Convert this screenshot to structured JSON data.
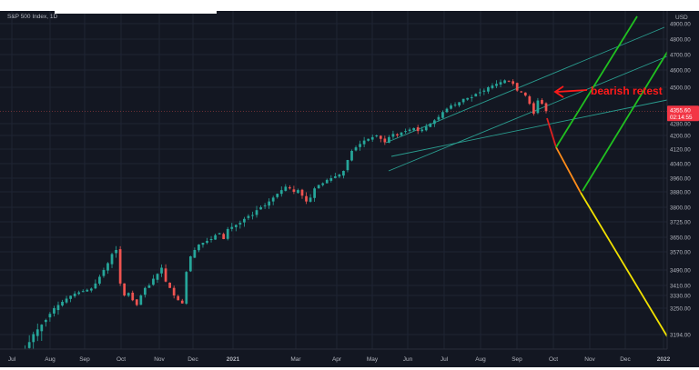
{
  "legend": {
    "symbol": "S&P 500 Index, 1D"
  },
  "annotations": [
    {
      "text": "bearish retest",
      "color": "#ff1a1a"
    }
  ],
  "price_tag": {
    "price": "4355.60",
    "countdown": "02:14:55",
    "color": "#f23645"
  },
  "colors": {
    "background": "#131722",
    "grid": "#1f2433",
    "axis_text": "#b2b5be",
    "candle_up": "#26a69a",
    "candle_down": "#ef5350",
    "channel": "#2a9d8f",
    "green_line": "#20c020",
    "red_line": "#e02020",
    "orange_line": "#ff8c1a",
    "yellow_line": "#f0e000"
  },
  "chart_data": {
    "type": "candlestick",
    "title": "",
    "xlabel": "",
    "ylabel": "",
    "y_axis_labels": [
      "4900.00",
      "4800.00",
      "4700.00",
      "4600.00",
      "4500.00",
      "4280.00",
      "4200.00",
      "4120.00",
      "4040.00",
      "3960.00",
      "3880.00",
      "3800.00",
      "3725.00",
      "3650.00",
      "3570.00",
      "3490.00",
      "3410.00",
      "3330.00",
      "3250.00",
      "3194.00"
    ],
    "y_axis_top_label": "USD",
    "x_axis_labels": [
      "Jul",
      "Aug",
      "Sep",
      "Oct",
      "Nov",
      "Dec",
      "2021",
      "Mar",
      "Apr",
      "May",
      "Jun",
      "Jul",
      "Aug",
      "Sep",
      "Oct",
      "Nov",
      "Dec",
      "2022"
    ],
    "x_axis_bold": [
      "2021",
      "2022"
    ],
    "current_price": 4355.6,
    "grid": true,
    "series": [
      {
        "values": [
          3120,
          3135,
          3150,
          3162,
          3178,
          3195,
          3205,
          3215,
          3225,
          3238,
          3250,
          3270,
          3290,
          3310,
          3328,
          3345,
          3355,
          3365,
          3375,
          3385,
          3420,
          3455,
          3490,
          3520,
          3560,
          3580,
          3420,
          3330,
          3350,
          3300,
          3270,
          3330,
          3390,
          3410,
          3445,
          3470,
          3500,
          3430,
          3390,
          3330,
          3300,
          3280,
          3480,
          3550,
          3580,
          3610,
          3620,
          3630,
          3640,
          3660,
          3670,
          3640,
          3690,
          3700,
          3710,
          3720,
          3740,
          3755,
          3760,
          3785,
          3800,
          3810,
          3830,
          3850,
          3870,
          3890,
          3910,
          3900,
          3880,
          3890,
          3860,
          3830,
          3850,
          3900,
          3920,
          3930,
          3950,
          3960,
          3970,
          3980,
          4000,
          4060,
          4110,
          4130,
          4150,
          4170,
          4180,
          4190,
          4200,
          4180,
          4160,
          4190,
          4210,
          4200,
          4220,
          4230,
          4240,
          4250,
          4230,
          4240,
          4260,
          4280,
          4300,
          4320,
          4350,
          4370,
          4390,
          4395,
          4410,
          4430,
          4435,
          4440,
          4460,
          4470,
          4480,
          4500,
          4510,
          4520,
          4530,
          4540,
          4535,
          4520,
          4480,
          4470,
          4450,
          4400,
          4340,
          4420,
          4400,
          4355.6
        ]
      }
    ]
  }
}
